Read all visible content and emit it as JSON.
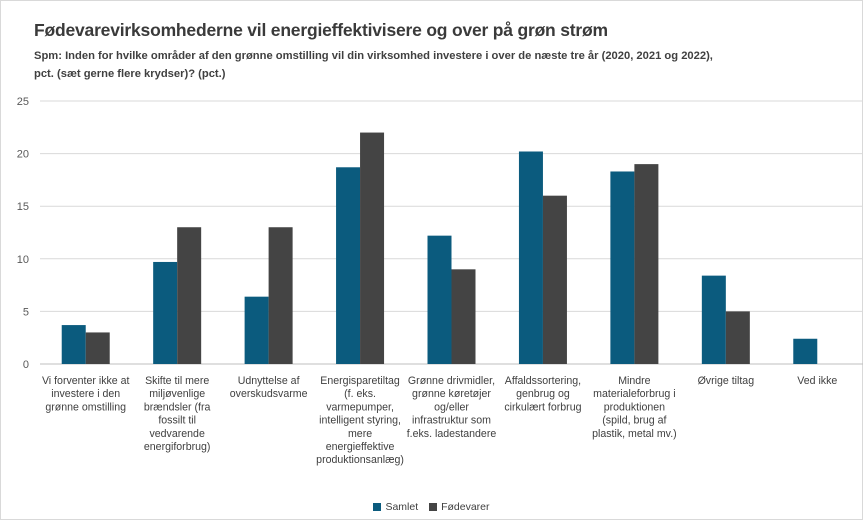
{
  "chart_data": {
    "type": "bar",
    "title": "Fødevarevirksomhederne vil energieffektivisere og over på grøn strøm",
    "subtitle": "Spm: Inden for hvilke områder af den grønne omstilling vil din virksomhed investere i over de næste tre år (2020, 2021 og 2022), pct. (sæt gerne flere krydser)? (pct.)",
    "ylim": [
      0,
      25
    ],
    "yticks": [
      0,
      5,
      10,
      15,
      20,
      25
    ],
    "grid": true,
    "legend_position": "bottom",
    "categories": [
      [
        "Vi forventer ikke at",
        "investere i den",
        "grønne omstilling"
      ],
      [
        "Skifte til mere",
        "miljøvenlige",
        "brændsler (fra",
        "fossilt til",
        "vedvarende",
        "energiforbrug)"
      ],
      [
        "Udnyttelse af",
        "overskudsvarme"
      ],
      [
        "Energisparetiltag",
        "(f. eks.",
        "varmepumper,",
        "intelligent styring,",
        "mere",
        "energieffektive",
        "produktionsanlæg)"
      ],
      [
        "Grønne drivmidler,",
        "grønne køretøjer",
        "og/eller",
        "infrastruktur som",
        "f.eks. ladestandere"
      ],
      [
        "Affaldssortering,",
        "genbrug og",
        "cirkulært forbrug"
      ],
      [
        "Mindre",
        "materialeforbrug i",
        "produktionen",
        "(spild, brug af",
        "plastik, metal mv.)"
      ],
      [
        "Øvrige tiltag"
      ],
      [
        "Ved ikke"
      ]
    ],
    "series": [
      {
        "name": "Samlet",
        "color": "#0b5b7e",
        "values": [
          3.7,
          9.7,
          6.4,
          18.7,
          12.2,
          20.2,
          18.3,
          8.4,
          2.4
        ]
      },
      {
        "name": "Fødevarer",
        "color": "#444444",
        "values": [
          3.0,
          13.0,
          13.0,
          22.0,
          9.0,
          16.0,
          19.0,
          5.0,
          0
        ]
      }
    ]
  }
}
